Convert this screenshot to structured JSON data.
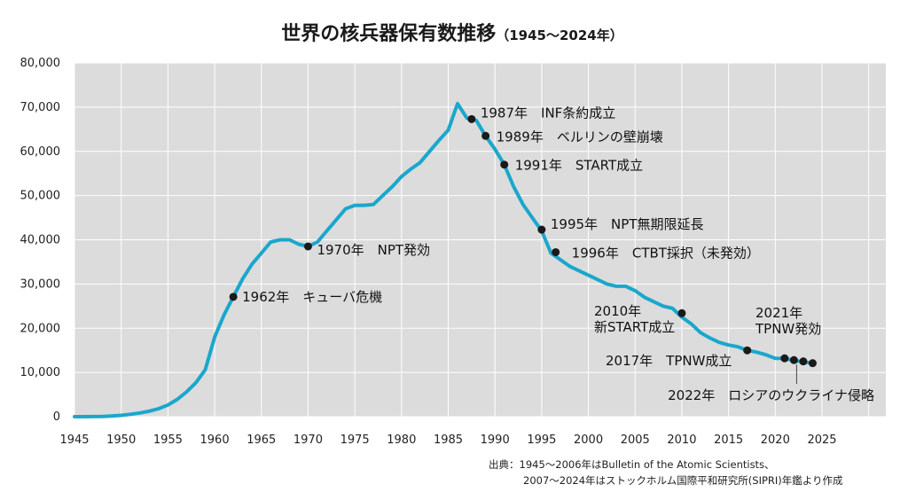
{
  "chart_data": {
    "type": "line",
    "title": "世界の核兵器保有数推移",
    "subtitle": "（1945〜2024年）",
    "xlabel": "",
    "ylabel": "",
    "xlim": [
      1945,
      2029
    ],
    "ylim": [
      0,
      80000
    ],
    "grid": true,
    "x_ticks": [
      1945,
      1950,
      1955,
      1960,
      1965,
      1970,
      1975,
      1980,
      1985,
      1990,
      1995,
      2000,
      2005,
      2010,
      2015,
      2020,
      2025
    ],
    "y_ticks": [
      0,
      10000,
      20000,
      30000,
      40000,
      50000,
      60000,
      70000,
      80000
    ],
    "y_tick_labels": [
      "0",
      "10,000",
      "20,000",
      "30,000",
      "40,000",
      "50,000",
      "60,000",
      "70,000",
      "80,000"
    ],
    "series": [
      {
        "color": "#1aa7cc",
        "x": [
          1945,
          1946,
          1947,
          1948,
          1949,
          1950,
          1951,
          1952,
          1953,
          1954,
          1955,
          1956,
          1957,
          1958,
          1959,
          1960,
          1961,
          1962,
          1963,
          1964,
          1965,
          1966,
          1967,
          1968,
          1969,
          1970,
          1971,
          1972,
          1973,
          1974,
          1975,
          1976,
          1977,
          1978,
          1979,
          1980,
          1981,
          1982,
          1983,
          1984,
          1985,
          1986,
          1987,
          1988,
          1989,
          1990,
          1991,
          1992,
          1993,
          1994,
          1995,
          1996,
          1997,
          1998,
          1999,
          2000,
          2001,
          2002,
          2003,
          2004,
          2005,
          2006,
          2007,
          2008,
          2009,
          2010,
          2011,
          2012,
          2013,
          2014,
          2015,
          2016,
          2017,
          2018,
          2019,
          2020,
          2021,
          2022,
          2023,
          2024
        ],
        "values": [
          6,
          9,
          13,
          50,
          170,
          300,
          550,
          850,
          1250,
          1800,
          2650,
          3900,
          5600,
          7700,
          10600,
          18000,
          23000,
          27100,
          31200,
          34500,
          37000,
          39500,
          40000,
          40000,
          39000,
          38500,
          39500,
          42000,
          44500,
          47000,
          47800,
          47800,
          48000,
          50000,
          52000,
          54300,
          56000,
          57500,
          60000,
          62500,
          64800,
          70800,
          67500,
          67000,
          63500,
          60500,
          57000,
          52000,
          48000,
          45000,
          42000,
          37000,
          35500,
          34000,
          33000,
          32000,
          31000,
          30000,
          29500,
          29500,
          28500,
          27000,
          26000,
          25000,
          24500,
          22500,
          21000,
          19000,
          17800,
          16800,
          16200,
          15800,
          15000,
          14600,
          14000,
          13200,
          13200,
          12700,
          12400,
          12100
        ]
      }
    ],
    "events": [
      {
        "year": 1962,
        "value": 27100,
        "label": "1962年　キューバ危機"
      },
      {
        "year": 1970,
        "value": 38500,
        "label": "1970年　NPT発効"
      },
      {
        "year": 1987.5,
        "value": 67300,
        "label": "1987年　INF条約成立"
      },
      {
        "year": 1989,
        "value": 63500,
        "label": "1989年　ベルリンの壁崩壊"
      },
      {
        "year": 1991,
        "value": 57000,
        "label": "1991年　START成立"
      },
      {
        "year": 1995,
        "value": 42300,
        "label": "1995年　NPT無期限延長"
      },
      {
        "year": 1996.5,
        "value": 37200,
        "label": "1996年　CTBT採択（未発効）"
      },
      {
        "year": 2010,
        "value": 23400,
        "label_lines": [
          "2010年",
          "新START成立"
        ]
      },
      {
        "year": 2017,
        "value": 15000,
        "label": "2017年　TPNW成立"
      },
      {
        "year": 2021,
        "value": 13200,
        "label_lines": [
          "2021年",
          "TPNW発効"
        ]
      },
      {
        "year": 2022,
        "value": 12800,
        "label": "2022年　ロシアのウクライナ侵略"
      },
      {
        "year": 2023,
        "value": 12500,
        "label": ""
      },
      {
        "year": 2024,
        "value": 12100,
        "label": ""
      }
    ],
    "source_lines": [
      "出典：1945〜2006年はBulletin of the Atomic Scientists、",
      "2007〜2024年はストックホルム国際平和研究所(SIPRI)年鑑より作成"
    ]
  }
}
